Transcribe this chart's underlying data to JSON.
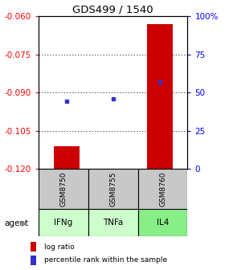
{
  "title": "GDS499 / 1540",
  "categories": [
    "GSM8750",
    "GSM8755",
    "GSM8760"
  ],
  "agents": [
    "IFNg",
    "TNFa",
    "IL4"
  ],
  "log_ratios": [
    -0.111,
    -0.121,
    -0.063
  ],
  "percentiles": [
    44,
    46,
    57
  ],
  "ylim_left": [
    -0.12,
    -0.06
  ],
  "ylim_right": [
    0,
    100
  ],
  "yticks_left": [
    -0.12,
    -0.105,
    -0.09,
    -0.075,
    -0.06
  ],
  "yticks_right": [
    0,
    25,
    50,
    75,
    100
  ],
  "bar_color": "#cc0000",
  "dot_color": "#3333cc",
  "sample_bg": "#c8c8c8",
  "agent_colors": [
    "#ccffcc",
    "#ccffcc",
    "#88ee88"
  ],
  "baseline": -0.12,
  "bar_width": 0.55,
  "legend_bar_color": "#cc0000",
  "legend_dot_color": "#3333cc",
  "title_fontsize": 9.5,
  "tick_fontsize": 7.5,
  "agent_fontsize": 7.5,
  "sample_fontsize": 6.5,
  "legend_fontsize": 6.5
}
